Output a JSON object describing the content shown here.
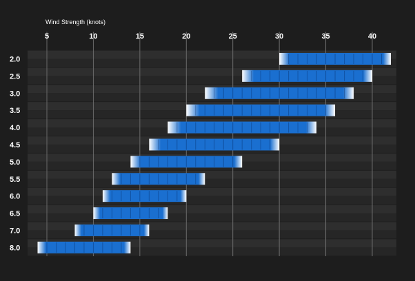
{
  "chart_data": {
    "type": "bar",
    "orientation": "horizontal",
    "title": "",
    "xlabel": "Wind Strength (knots)",
    "ylabel": "",
    "xlim": [
      2.5,
      42.5
    ],
    "x_ticks": [
      "5",
      "10",
      "15",
      "20",
      "25",
      "30",
      "35",
      "40"
    ],
    "grid": true,
    "categories": [
      "2.0",
      "2.5",
      "3.0",
      "3.5",
      "4.0",
      "4.5",
      "5.0",
      "5.5",
      "6.0",
      "6.5",
      "7.0",
      "8.0"
    ],
    "series": [
      {
        "ranges": [
          [
            30,
            42
          ],
          [
            26,
            40
          ],
          [
            22,
            38
          ],
          [
            20,
            36
          ],
          [
            18,
            34
          ],
          [
            16,
            30
          ],
          [
            14,
            26
          ],
          [
            12,
            22
          ],
          [
            11,
            20
          ],
          [
            10,
            18
          ],
          [
            8,
            16
          ],
          [
            4,
            14
          ]
        ]
      }
    ]
  },
  "colors": {
    "background": "#1d1d1d",
    "row_dark": "#262626",
    "row_light": "#2e2e2e",
    "bar": "#1a6fd0",
    "bar_fade": "#ffffff",
    "gridline": "#6a6a6a",
    "text": "#ffffff"
  }
}
